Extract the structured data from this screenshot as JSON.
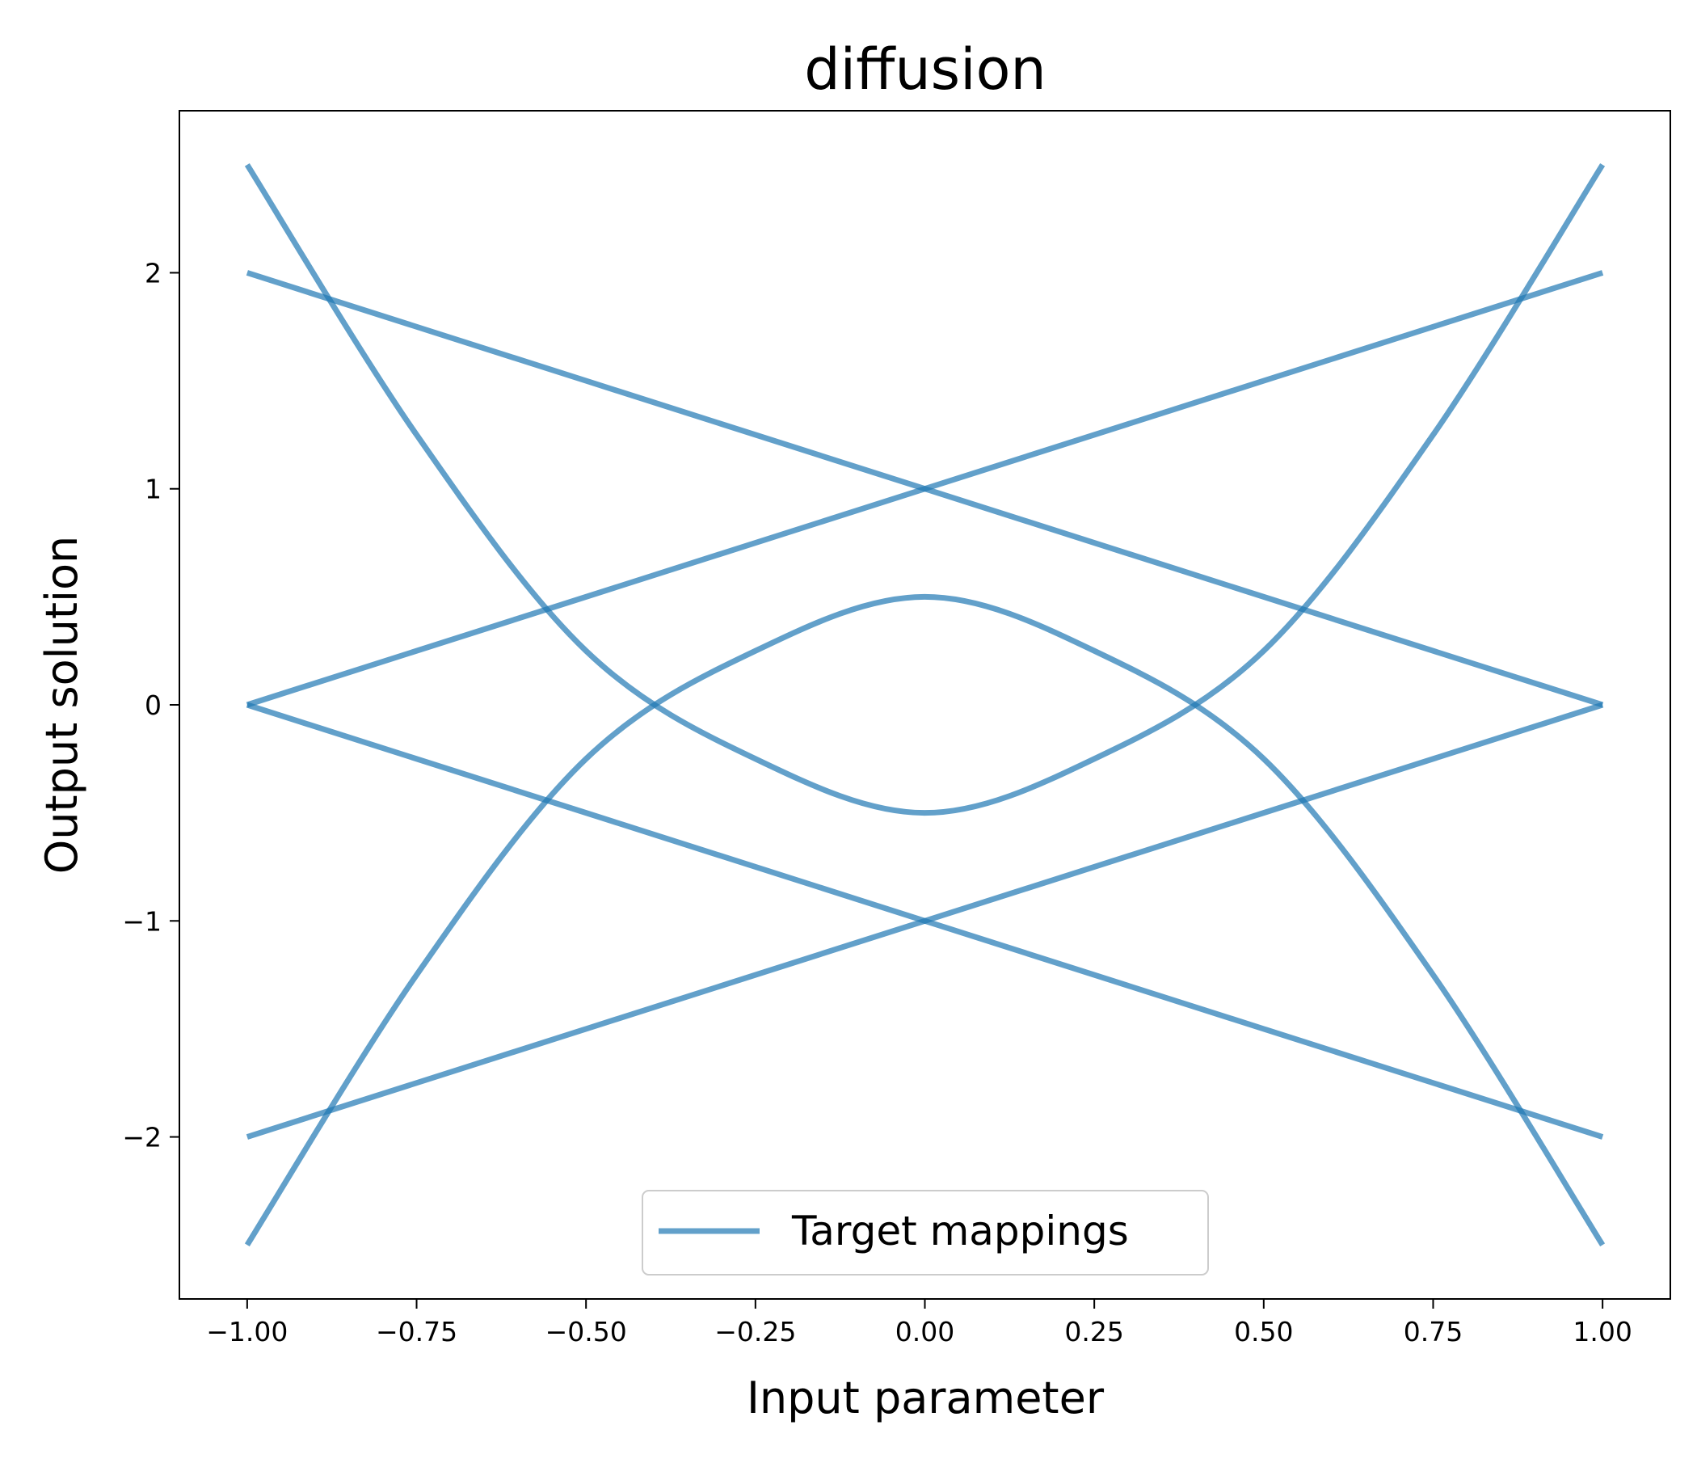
{
  "chart_data": {
    "type": "line",
    "title": "diffusion",
    "xlabel": "Input parameter",
    "ylabel": "Output solution",
    "xlim": [
      -1.1,
      1.1
    ],
    "ylim": [
      -2.75,
      2.75
    ],
    "xticks": [
      -1.0,
      -0.75,
      -0.5,
      -0.25,
      0.0,
      0.25,
      0.5,
      0.75,
      1.0
    ],
    "xtick_labels": [
      "−1.00",
      "−0.75",
      "−0.50",
      "−0.25",
      "0.00",
      "0.25",
      "0.50",
      "0.75",
      "1.00"
    ],
    "yticks": [
      -2,
      -1,
      0,
      1,
      2
    ],
    "ytick_labels": [
      "−2",
      "−1",
      "0",
      "1",
      "2"
    ],
    "grid": false,
    "legend": {
      "position": "lower center",
      "entries": [
        "Target mappings"
      ]
    },
    "line_color": "#1f77b4",
    "line_opacity": 0.7,
    "series": [
      {
        "label": "Target mappings",
        "x": [
          -1.0,
          -0.5,
          0.0,
          0.5,
          1.0
        ],
        "y": [
          0.0,
          0.5,
          1.0,
          1.5,
          2.0
        ]
      },
      {
        "x": [
          -1.0,
          -0.5,
          0.0,
          0.5,
          1.0
        ],
        "y": [
          2.0,
          1.5,
          1.0,
          0.5,
          0.0
        ]
      },
      {
        "x": [
          -1.0,
          -0.5,
          0.0,
          0.5,
          1.0
        ],
        "y": [
          0.0,
          -0.5,
          -1.0,
          -1.5,
          -2.0
        ]
      },
      {
        "x": [
          -1.0,
          -0.5,
          0.0,
          0.5,
          1.0
        ],
        "y": [
          -2.0,
          -1.5,
          -1.0,
          -0.5,
          0.0
        ]
      },
      {
        "x": [
          -1.0,
          -0.75,
          -0.5,
          -0.25,
          0.0,
          0.25,
          0.5,
          0.75,
          1.0
        ],
        "y": [
          2.5,
          1.25,
          0.25,
          -0.25,
          -0.5,
          -0.25,
          0.25,
          1.25,
          2.5
        ]
      },
      {
        "x": [
          -1.0,
          -0.75,
          -0.5,
          -0.25,
          0.0,
          0.25,
          0.5,
          0.75,
          1.0
        ],
        "y": [
          -2.5,
          -1.25,
          -0.25,
          0.25,
          0.5,
          0.25,
          -0.25,
          -1.25,
          -2.5
        ]
      }
    ]
  }
}
